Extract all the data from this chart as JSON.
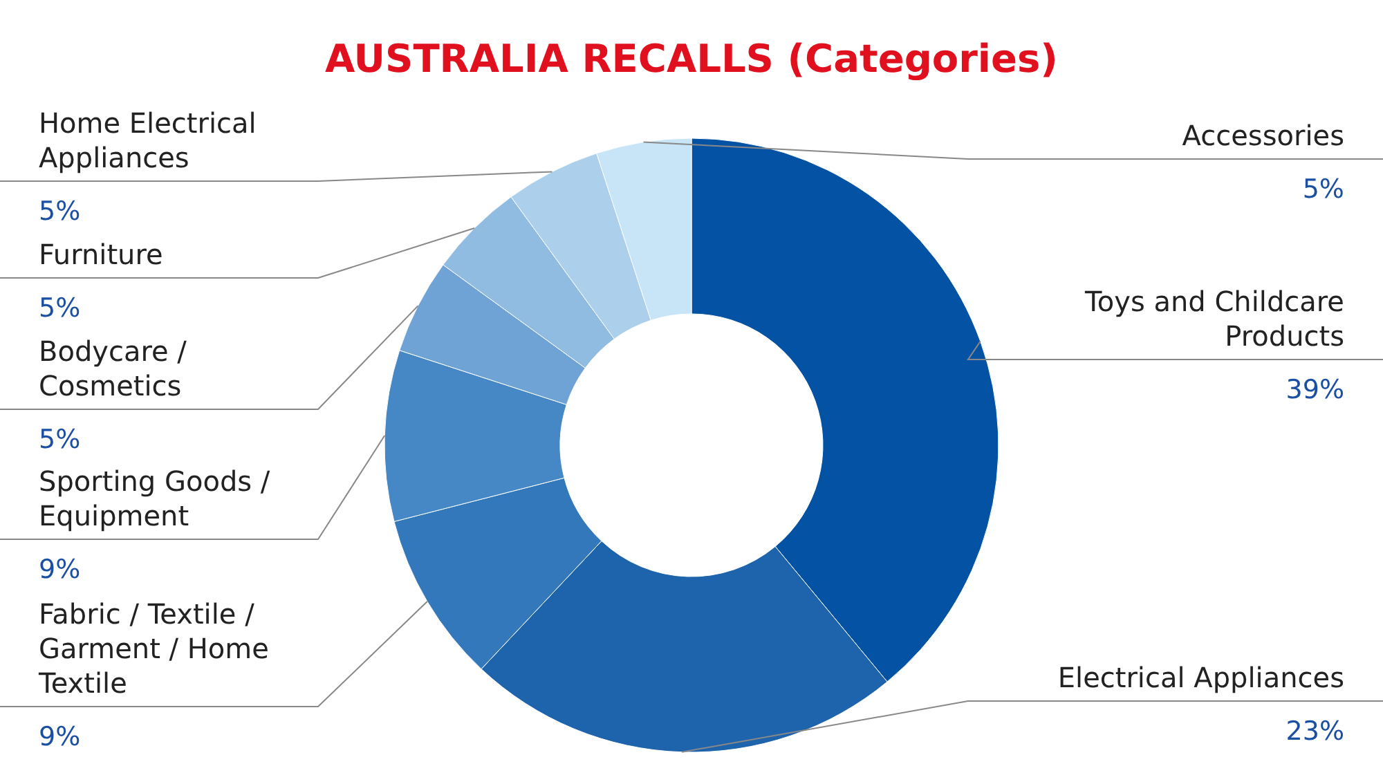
{
  "chart_data": {
    "type": "donut",
    "title": "AUSTRALIA RECALLS (Categories)",
    "categories": [
      "Toys and Childcare Products",
      "Electrical Appliances",
      "Fabric / Textile / Garment / Home Textile",
      "Sporting Goods / Equipment",
      "Bodycare / Cosmetics",
      "Furniture",
      "Home Electrical Appliances",
      "Accessories"
    ],
    "values": [
      39,
      23,
      9,
      9,
      5,
      5,
      5,
      5
    ],
    "colors": [
      "#0452a3",
      "#1e64ad",
      "#3378ba",
      "#4688c6",
      "#6fa3d5",
      "#8fbce0",
      "#acd0ec",
      "#c8e5f7"
    ],
    "value_labels": [
      "39%",
      "23%",
      "9%",
      "9%",
      "5%",
      "5%",
      "5%",
      "5%"
    ]
  }
}
